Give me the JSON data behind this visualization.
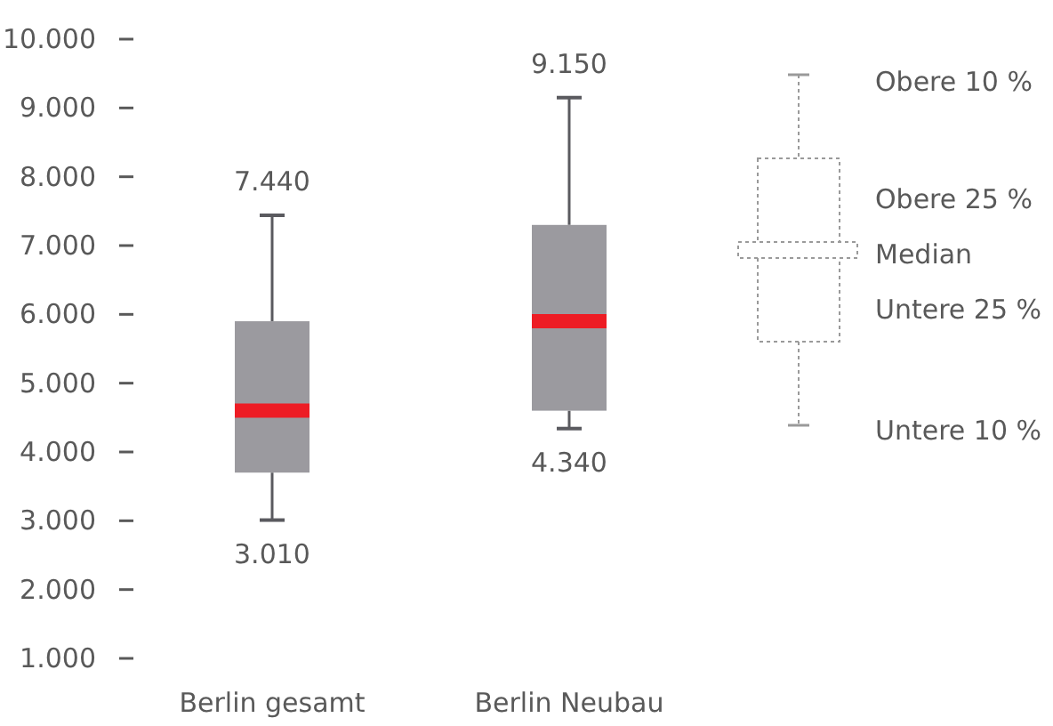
{
  "chart_data": {
    "type": "box",
    "categories": [
      "Berlin gesamt",
      "Berlin Neubau"
    ],
    "boxes": [
      {
        "low": 3010,
        "q1": 3700,
        "median": 4600,
        "q3": 5900,
        "high": 7440
      },
      {
        "low": 4340,
        "q1": 4600,
        "median": 5900,
        "q3": 7300,
        "high": 9150
      }
    ],
    "color": "#9b9a9f",
    "ylim": [
      1000,
      10000
    ],
    "yticks": [
      {
        "value": 1000,
        "label": "1.000"
      },
      {
        "value": 2000,
        "label": "2.000"
      },
      {
        "value": 3000,
        "label": "3.000"
      },
      {
        "value": 4000,
        "label": "4.000"
      },
      {
        "value": 5000,
        "label": "5.000"
      },
      {
        "value": 6000,
        "label": "6.000"
      },
      {
        "value": 7000,
        "label": "7.000"
      },
      {
        "value": 8000,
        "label": "8.000"
      },
      {
        "value": 9000,
        "label": "9.000"
      },
      {
        "value": 10000,
        "label": "10.000"
      }
    ],
    "annotations": [
      "7.440",
      "3.010",
      "9.150",
      "4.340",
      "Obere 10 %",
      "Obere 25 %",
      "Median",
      "Untere 25 %",
      "Untere 10 %"
    ]
  }
}
